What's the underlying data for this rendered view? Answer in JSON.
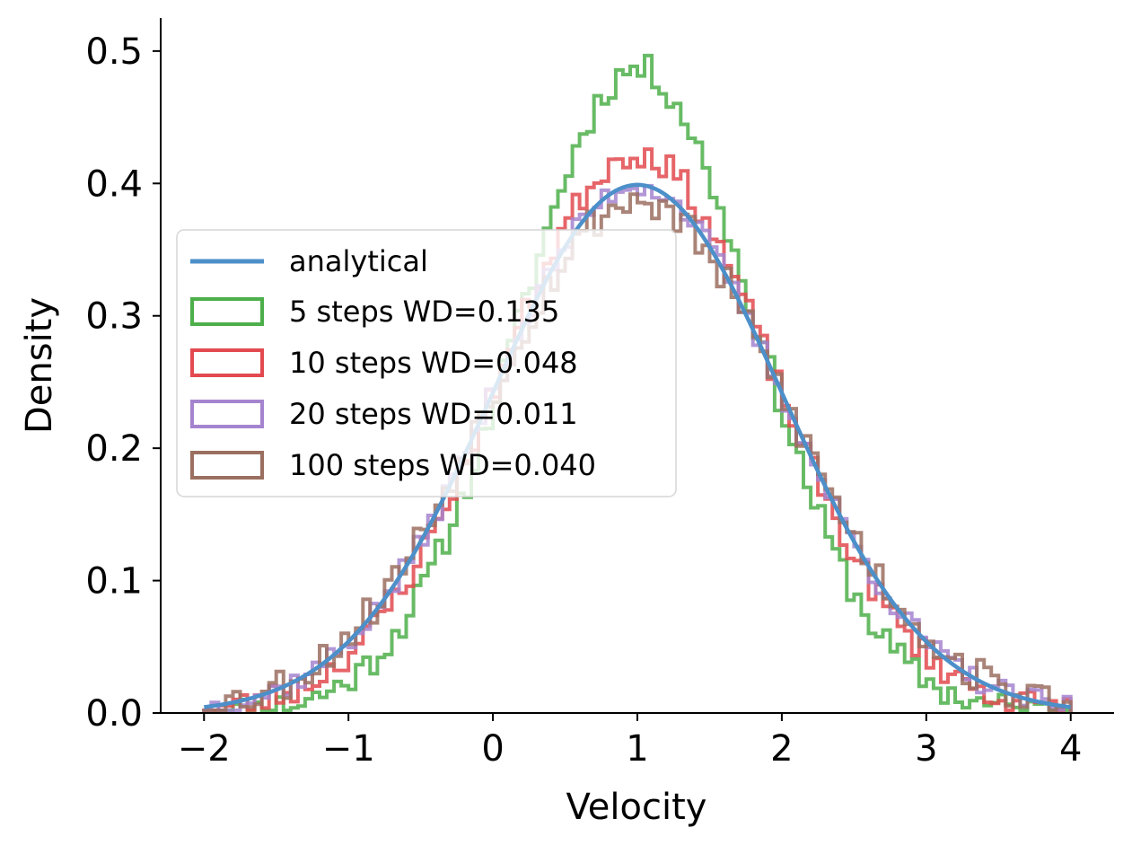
{
  "chart_data": {
    "type": "line",
    "title": "",
    "xlabel": "Velocity",
    "ylabel": "Density",
    "xlim": [
      -2.3,
      4.3
    ],
    "ylim": [
      0,
      0.525
    ],
    "xticks": [
      -2,
      -1,
      0,
      1,
      2,
      3,
      4
    ],
    "xtick_labels": [
      "−2",
      "−1",
      "0",
      "1",
      "2",
      "3",
      "4"
    ],
    "yticks": [
      0.0,
      0.1,
      0.2,
      0.3,
      0.4,
      0.5
    ],
    "ytick_labels": [
      "0.0",
      "0.1",
      "0.2",
      "0.3",
      "0.4",
      "0.5"
    ],
    "legend_position": "center-left",
    "analytical": {
      "name": "analytical",
      "mean": 1.0,
      "std": 1.0,
      "color": "#4c8fc9"
    },
    "histogram_bins": {
      "start": -2.0,
      "end": 4.0,
      "width": 0.05
    },
    "series": [
      {
        "name": "5 steps WD=0.135",
        "steps": 5,
        "scale": 1.22,
        "seed": 11,
        "noise": 0.012,
        "color": "#4daf4a"
      },
      {
        "name": "10 steps WD=0.048",
        "steps": 10,
        "scale": 1.06,
        "seed": 23,
        "noise": 0.011,
        "color": "#e24a4f"
      },
      {
        "name": "20 steps WD=0.011",
        "steps": 20,
        "scale": 1.0,
        "seed": 37,
        "noise": 0.009,
        "color": "#a584cf"
      },
      {
        "name": "100 steps WD=0.040",
        "steps": 100,
        "scale": 0.97,
        "seed": 53,
        "noise": 0.014,
        "color": "#9b6f60"
      }
    ]
  }
}
